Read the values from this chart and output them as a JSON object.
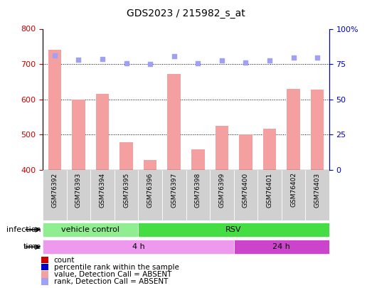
{
  "title": "GDS2023 / 215982_s_at",
  "samples": [
    "GSM76392",
    "GSM76393",
    "GSM76394",
    "GSM76395",
    "GSM76396",
    "GSM76397",
    "GSM76398",
    "GSM76399",
    "GSM76400",
    "GSM76401",
    "GSM76402",
    "GSM76403"
  ],
  "bar_values": [
    740,
    600,
    615,
    478,
    428,
    672,
    458,
    525,
    500,
    517,
    630,
    628
  ],
  "rank_values": [
    725,
    713,
    715,
    702,
    700,
    722,
    702,
    710,
    705,
    710,
    718,
    718
  ],
  "bar_color": "#f4a0a0",
  "rank_color": "#a0a0f4",
  "ylim_left": [
    400,
    800
  ],
  "ylim_right": [
    0,
    100
  ],
  "yticks_left": [
    400,
    500,
    600,
    700,
    800
  ],
  "yticks_right": [
    0,
    25,
    50,
    75,
    100
  ],
  "infection_groups": [
    {
      "label": "vehicle control",
      "start": 0,
      "end": 4,
      "color": "#90ee90"
    },
    {
      "label": "RSV",
      "start": 4,
      "end": 12,
      "color": "#44dd44"
    }
  ],
  "time_groups": [
    {
      "label": "4 h",
      "start": 0,
      "end": 8,
      "color": "#ee99ee"
    },
    {
      "label": "24 h",
      "start": 8,
      "end": 12,
      "color": "#cc44cc"
    }
  ],
  "infection_label": "infection",
  "time_label": "time",
  "legend_items": [
    {
      "label": "count",
      "color": "#cc0000"
    },
    {
      "label": "percentile rank within the sample",
      "color": "#0000cc"
    },
    {
      "label": "value, Detection Call = ABSENT",
      "color": "#f4a0a0"
    },
    {
      "label": "rank, Detection Call = ABSENT",
      "color": "#a0a0f4"
    }
  ],
  "left_tick_color": "#cc0000",
  "right_tick_color": "#0000cc",
  "xtick_box_color": "#d0d0d0",
  "bg_color": "#ffffff"
}
